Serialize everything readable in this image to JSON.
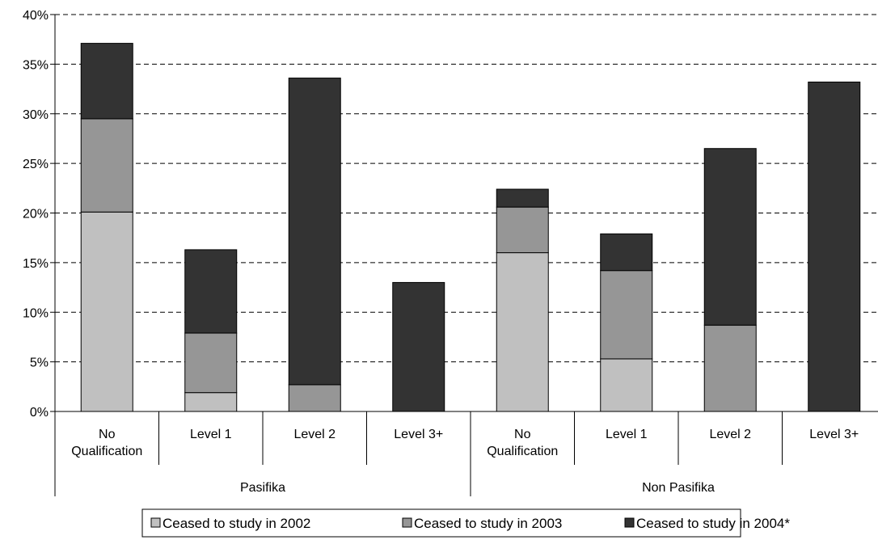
{
  "chart_data": {
    "type": "bar",
    "stacked": true,
    "title": "",
    "xlabel": "",
    "ylabel": "",
    "ylim": [
      0,
      40
    ],
    "y_ticks": [
      "0%",
      "5%",
      "10%",
      "15%",
      "20%",
      "25%",
      "30%",
      "35%",
      "40%"
    ],
    "y_tick_values": [
      0,
      5,
      10,
      15,
      20,
      25,
      30,
      35,
      40
    ],
    "grid": "horizontal-dashed",
    "legend_placement": "bottom",
    "groups": [
      {
        "label": "Pasifika",
        "categories": [
          "No Qualification",
          "Level 1",
          "Level 2",
          "Level 3+"
        ]
      },
      {
        "label": "Non Pasifika",
        "categories": [
          "No Qualification",
          "Level 1",
          "Level 2",
          "Level 3+"
        ]
      }
    ],
    "categories": [
      "No Qualification",
      "Level 1",
      "Level 2",
      "Level 3+",
      "No Qualification",
      "Level 1",
      "Level 2",
      "Level 3+"
    ],
    "series": [
      {
        "name": "Ceased to study in 2002",
        "color": "#c0c0c0",
        "values": [
          20.1,
          1.9,
          0,
          0,
          16.0,
          5.3,
          0,
          0
        ]
      },
      {
        "name": "Ceased to study in 2003",
        "color": "#969696",
        "values": [
          9.4,
          6.0,
          2.7,
          0,
          4.6,
          8.9,
          8.7,
          0
        ]
      },
      {
        "name": "Ceased to study in 2004*",
        "color": "#333333",
        "values": [
          7.6,
          8.4,
          30.9,
          13.0,
          1.8,
          3.7,
          17.8,
          33.2
        ]
      }
    ]
  }
}
